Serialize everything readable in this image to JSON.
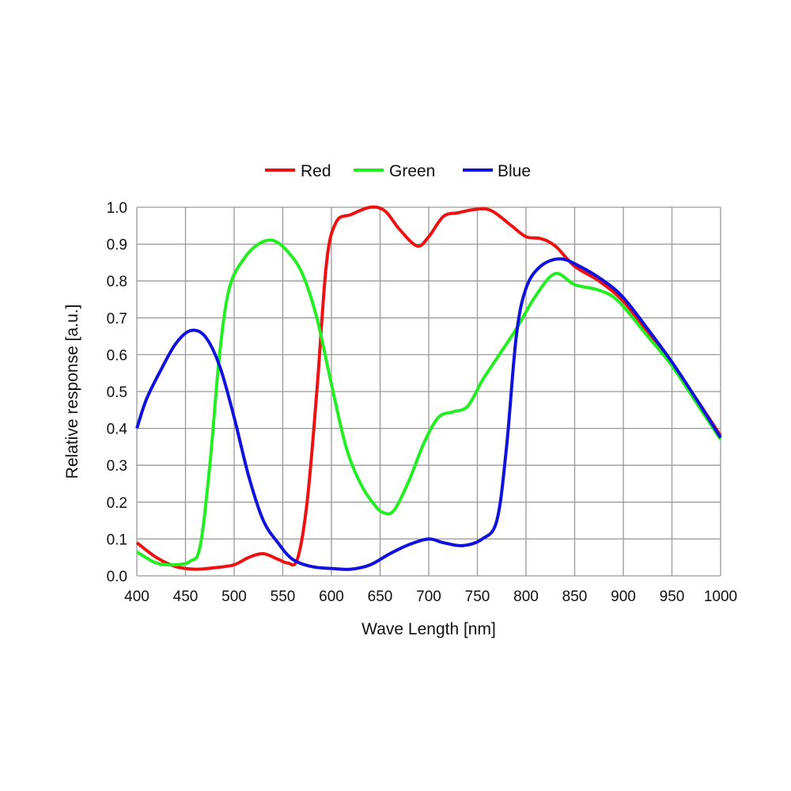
{
  "chart_data": {
    "type": "line",
    "title": "",
    "xlabel": "Wave Length [nm]",
    "ylabel": "Relative response [a.u.]",
    "xlim": [
      400,
      1000
    ],
    "ylim": [
      0,
      1.0
    ],
    "xticks": [
      "400",
      "450",
      "500",
      "550",
      "600",
      "650",
      "700",
      "750",
      "800",
      "850",
      "900",
      "950",
      "1000"
    ],
    "yticks": [
      "0.0",
      "0.1",
      "0.2",
      "0.3",
      "0.4",
      "0.5",
      "0.6",
      "0.7",
      "0.8",
      "0.9",
      "1.0"
    ],
    "grid": true,
    "legend_placement": "top-center",
    "series": [
      {
        "name": "Red",
        "color": "#ee1111",
        "x": [
          400,
          420,
          440,
          460,
          480,
          500,
          515,
          530,
          545,
          555,
          565,
          575,
          585,
          595,
          605,
          620,
          640,
          655,
          670,
          688,
          700,
          715,
          730,
          750,
          765,
          785,
          800,
          815,
          830,
          850,
          875,
          900,
          925,
          950,
          975,
          1000
        ],
        "y": [
          0.09,
          0.05,
          0.025,
          0.018,
          0.022,
          0.03,
          0.05,
          0.06,
          0.045,
          0.035,
          0.045,
          0.2,
          0.5,
          0.85,
          0.96,
          0.98,
          1.0,
          0.99,
          0.94,
          0.895,
          0.92,
          0.975,
          0.985,
          0.995,
          0.99,
          0.95,
          0.92,
          0.915,
          0.895,
          0.84,
          0.8,
          0.745,
          0.66,
          0.575,
          0.48,
          0.38
        ]
      },
      {
        "name": "Green",
        "color": "#22ee22",
        "x": [
          400,
          420,
          440,
          455,
          465,
          475,
          485,
          495,
          510,
          525,
          540,
          555,
          570,
          585,
          600,
          615,
          630,
          645,
          655,
          665,
          680,
          695,
          710,
          725,
          740,
          755,
          770,
          790,
          810,
          830,
          850,
          875,
          895,
          925,
          950,
          975,
          1000
        ],
        "y": [
          0.065,
          0.035,
          0.03,
          0.04,
          0.08,
          0.3,
          0.6,
          0.78,
          0.86,
          0.9,
          0.91,
          0.88,
          0.82,
          0.7,
          0.52,
          0.35,
          0.25,
          0.19,
          0.17,
          0.18,
          0.26,
          0.36,
          0.43,
          0.445,
          0.46,
          0.53,
          0.59,
          0.67,
          0.76,
          0.82,
          0.79,
          0.775,
          0.745,
          0.65,
          0.57,
          0.47,
          0.37
        ]
      },
      {
        "name": "Blue",
        "color": "#1111dd",
        "x": [
          400,
          410,
          425,
          440,
          455,
          470,
          485,
          500,
          515,
          530,
          545,
          560,
          580,
          600,
          620,
          640,
          660,
          680,
          700,
          715,
          735,
          755,
          770,
          780,
          790,
          800,
          815,
          835,
          855,
          880,
          900,
          925,
          950,
          975,
          1000
        ],
        "y": [
          0.4,
          0.48,
          0.56,
          0.63,
          0.665,
          0.65,
          0.57,
          0.43,
          0.27,
          0.15,
          0.09,
          0.045,
          0.025,
          0.02,
          0.018,
          0.03,
          0.06,
          0.085,
          0.1,
          0.09,
          0.082,
          0.1,
          0.15,
          0.35,
          0.65,
          0.78,
          0.84,
          0.86,
          0.84,
          0.8,
          0.755,
          0.67,
          0.58,
          0.48,
          0.375
        ]
      }
    ]
  }
}
